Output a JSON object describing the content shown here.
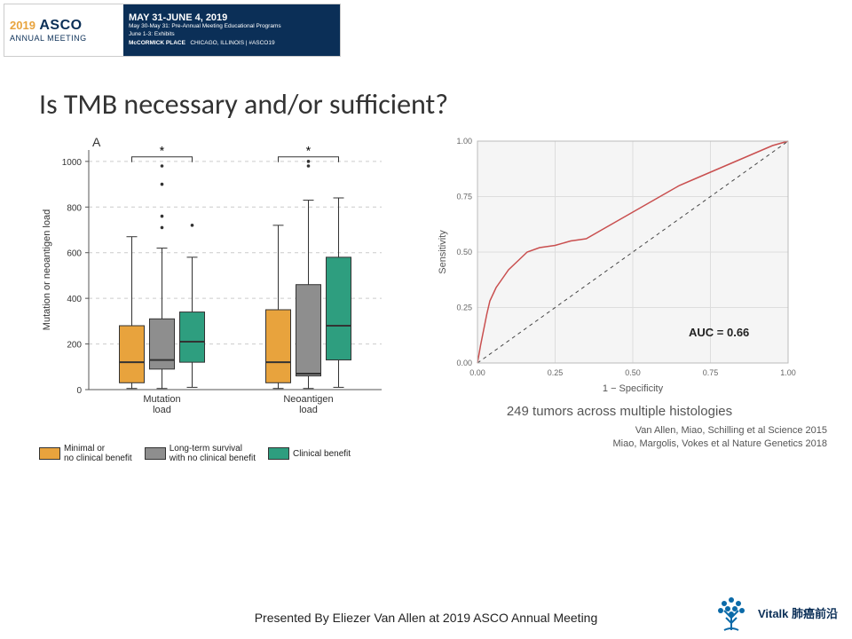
{
  "banner": {
    "year": "2019",
    "asco": "ASCO",
    "sub": "ANNUAL MEETING",
    "dates": "MAY 31-JUNE 4, 2019",
    "line1": "May 30-May 31: Pre-Annual Meeting Educational Programs",
    "line2": "June 1-3: Exhibits",
    "loc": "McCORMICK PLACE",
    "loc2": "CHICAGO, ILLINOIS | #ASCO19"
  },
  "slide_title": "Is TMB necessary and/or sufficient?",
  "boxplot": {
    "panel_label": "A",
    "ylabel": "Mutation or neoantigen load",
    "ylim": [
      0,
      1050
    ],
    "ytick_step": 200,
    "gridlines": [
      200,
      400,
      600,
      800,
      1000
    ],
    "grid_color": "#cccccc",
    "axis_color": "#555555",
    "group_labels": [
      "Mutation\nload",
      "Neoantigen\nload"
    ],
    "sig_marker": "*",
    "series": [
      {
        "key": "minimal",
        "color": "#e8a33d",
        "label": "Minimal or\nno clinical benefit"
      },
      {
        "key": "longterm",
        "color": "#8e8e8e",
        "label": "Long-term survival\nwith no clinical benefit"
      },
      {
        "key": "benefit",
        "color": "#2e9e7f",
        "label": "Clinical benefit"
      }
    ],
    "groups": [
      {
        "name": "Mutation load",
        "boxes": [
          {
            "series": "minimal",
            "q1": 30,
            "med": 120,
            "q3": 280,
            "wlo": 5,
            "whi": 670
          },
          {
            "series": "longterm",
            "q1": 90,
            "med": 130,
            "q3": 310,
            "wlo": 5,
            "whi": 620
          },
          {
            "series": "benefit",
            "q1": 120,
            "med": 210,
            "q3": 340,
            "wlo": 10,
            "whi": 580
          }
        ],
        "outliers": [
          {
            "series": "longterm",
            "vals": [
              710,
              760,
              900,
              980
            ]
          },
          {
            "series": "benefit",
            "vals": [
              720
            ]
          }
        ]
      },
      {
        "name": "Neoantigen load",
        "boxes": [
          {
            "series": "minimal",
            "q1": 30,
            "med": 120,
            "q3": 350,
            "wlo": 5,
            "whi": 720
          },
          {
            "series": "longterm",
            "q1": 60,
            "med": 70,
            "q3": 460,
            "wlo": 5,
            "whi": 830
          },
          {
            "series": "benefit",
            "q1": 130,
            "med": 280,
            "q3": 580,
            "wlo": 10,
            "whi": 840
          }
        ],
        "outliers": [
          {
            "series": "longterm",
            "vals": [
              980,
              1000
            ]
          }
        ]
      }
    ]
  },
  "roc": {
    "xlabel": "1 − Specificity",
    "ylabel": "Sensitivity",
    "ticks": [
      0.0,
      0.25,
      0.5,
      0.75,
      1.0
    ],
    "line_color": "#c94f4f",
    "diag_color": "#444444",
    "grid_color": "#dddddd",
    "bg_color": "#f5f5f5",
    "auc_label": "AUC = 0.66",
    "caption": "249 tumors across multiple histologies",
    "points": [
      [
        0.0,
        0.0
      ],
      [
        0.01,
        0.08
      ],
      [
        0.02,
        0.15
      ],
      [
        0.03,
        0.22
      ],
      [
        0.04,
        0.28
      ],
      [
        0.06,
        0.34
      ],
      [
        0.08,
        0.38
      ],
      [
        0.1,
        0.42
      ],
      [
        0.13,
        0.46
      ],
      [
        0.16,
        0.5
      ],
      [
        0.2,
        0.52
      ],
      [
        0.25,
        0.53
      ],
      [
        0.3,
        0.55
      ],
      [
        0.35,
        0.56
      ],
      [
        0.4,
        0.6
      ],
      [
        0.45,
        0.64
      ],
      [
        0.5,
        0.68
      ],
      [
        0.55,
        0.72
      ],
      [
        0.6,
        0.76
      ],
      [
        0.65,
        0.8
      ],
      [
        0.7,
        0.83
      ],
      [
        0.75,
        0.86
      ],
      [
        0.8,
        0.89
      ],
      [
        0.85,
        0.92
      ],
      [
        0.9,
        0.95
      ],
      [
        0.95,
        0.98
      ],
      [
        1.0,
        1.0
      ]
    ]
  },
  "refs": {
    "r1": "Van Allen, Miao, Schilling et al Science 2015",
    "r2": "Miao, Margolis, Vokes et al Nature Genetics 2018"
  },
  "footer": "Presented By Eliezer Van Allen at 2019 ASCO Annual Meeting",
  "vitalk": "Vitalk 肺癌前沿"
}
